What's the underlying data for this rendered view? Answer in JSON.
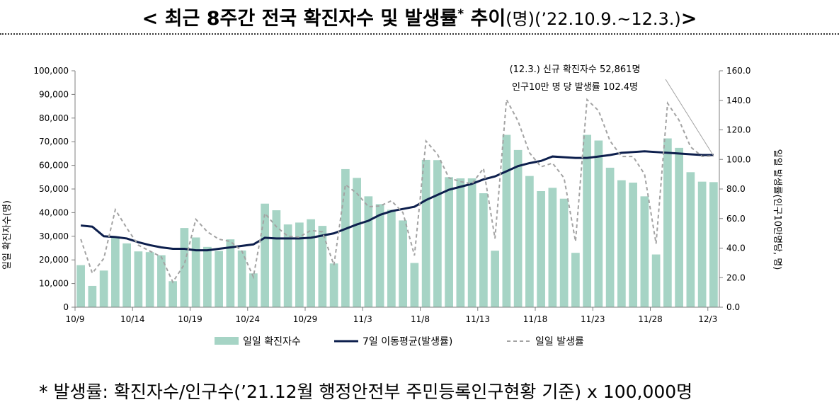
{
  "title": {
    "main": "< 최근 8주간 전국 확진자수 및 발생률",
    "star": "*",
    "tail": " 추이",
    "unit_period": "(명)(’22.10.9.~12.3.)",
    "close": ">"
  },
  "footnote": "* 발생률: 확진자수/인구수(’21.12월 행정안전부 주민등록인구현황 기준) x 100,000명",
  "colors": {
    "bar": "#a6d4c5",
    "avg_line": "#0d1f4d",
    "daily_rate_line": "#a3a3a3",
    "axis": "#7f7f7f"
  },
  "chart_data": {
    "type": "bar",
    "annotation": [
      "(12.3.) 신규 확진자수 52,861명",
      "인구10만 명 당 발생률 102.4명"
    ],
    "ylabel": "일일 확진자수(명)",
    "y2label": "일일 발생률(인구10만명당, 명)",
    "ylim": [
      0,
      100000
    ],
    "y2lim": [
      0,
      160
    ],
    "yticks": [
      "0",
      "10,000",
      "20,000",
      "30,000",
      "40,000",
      "50,000",
      "60,000",
      "70,000",
      "80,000",
      "90,000",
      "100,000"
    ],
    "y2ticks": [
      "0.0",
      "20.0",
      "40.0",
      "60.0",
      "80.0",
      "100.0",
      "120.0",
      "140.0",
      "160.0"
    ],
    "x_tick_labels": [
      {
        "index": 0,
        "label": "10/9"
      },
      {
        "index": 5,
        "label": "10/14"
      },
      {
        "index": 10,
        "label": "10/19"
      },
      {
        "index": 15,
        "label": "10/24"
      },
      {
        "index": 20,
        "label": "10/29"
      },
      {
        "index": 25,
        "label": "11/3"
      },
      {
        "index": 30,
        "label": "11/8"
      },
      {
        "index": 35,
        "label": "11/13"
      },
      {
        "index": 40,
        "label": "11/18"
      },
      {
        "index": 45,
        "label": "11/23"
      },
      {
        "index": 50,
        "label": "11/28"
      },
      {
        "index": 55,
        "label": "12/3"
      }
    ],
    "x": [
      "10/9",
      "10/10",
      "10/11",
      "10/12",
      "10/13",
      "10/14",
      "10/15",
      "10/16",
      "10/17",
      "10/18",
      "10/19",
      "10/20",
      "10/21",
      "10/22",
      "10/23",
      "10/24",
      "10/25",
      "10/26",
      "10/27",
      "10/28",
      "10/29",
      "10/30",
      "10/31",
      "11/1",
      "11/2",
      "11/3",
      "11/4",
      "11/5",
      "11/6",
      "11/7",
      "11/8",
      "11/9",
      "11/10",
      "11/11",
      "11/12",
      "11/13",
      "11/14",
      "11/15",
      "11/16",
      "11/17",
      "11/18",
      "11/19",
      "11/20",
      "11/21",
      "11/22",
      "11/23",
      "11/24",
      "11/25",
      "11/26",
      "11/27",
      "11/28",
      "11/29",
      "11/30",
      "12/1",
      "12/2",
      "12/3"
    ],
    "series": [
      {
        "name": "일일 확진자수",
        "type": "bar",
        "axis": "left",
        "values": [
          17800,
          9000,
          15500,
          30000,
          27000,
          23600,
          23300,
          22000,
          11000,
          33500,
          29500,
          25500,
          23800,
          28700,
          24000,
          14300,
          43800,
          41000,
          35000,
          35800,
          37200,
          34400,
          18500,
          58400,
          54700,
          46900,
          43600,
          41200,
          36700,
          18700,
          62300,
          62200,
          55000,
          54500,
          54500,
          48200,
          23900,
          72900,
          66500,
          55500,
          49100,
          50500,
          45900,
          23000,
          72900,
          70500,
          59000,
          53700,
          52700,
          46900,
          22300,
          71400,
          67400,
          57100,
          53100,
          52900
        ]
      },
      {
        "name": "7일 이동평균(발생률)",
        "type": "line",
        "axis": "right",
        "values": [
          55.3,
          54.5,
          48.0,
          47.5,
          46.5,
          44.0,
          42.0,
          40.5,
          39.5,
          39.5,
          38.5,
          38.5,
          39.5,
          40.5,
          41.5,
          42.5,
          47.0,
          46.5,
          46.5,
          46.5,
          47.0,
          48.5,
          50.0,
          53.0,
          56.0,
          58.5,
          62.5,
          65.0,
          66.5,
          68.0,
          72.5,
          76.0,
          79.5,
          81.5,
          83.5,
          86.5,
          88.5,
          92.0,
          95.5,
          97.5,
          99.0,
          102.0,
          101.5,
          101.0,
          101.0,
          102.0,
          103.0,
          104.5,
          105.0,
          105.5,
          105.0,
          104.5,
          104.0,
          103.5,
          103.0,
          103.0
        ]
      },
      {
        "name": "일일 발생률",
        "type": "line",
        "axis": "right",
        "values": [
          46.0,
          23.0,
          33.0,
          66.0,
          53.5,
          42.0,
          38.0,
          34.0,
          17.0,
          29.0,
          59.5,
          51.0,
          46.0,
          44.5,
          38.0,
          20.5,
          63.5,
          54.5,
          48.0,
          47.5,
          52.0,
          51.0,
          28.5,
          83.0,
          77.0,
          68.0,
          68.5,
          72.0,
          64.0,
          35.0,
          112.5,
          103.5,
          87.5,
          85.0,
          83.5,
          94.0,
          46.5,
          140.5,
          126.0,
          104.5,
          95.0,
          97.5,
          87.5,
          44.5,
          140.5,
          133.0,
          112.5,
          102.0,
          102.0,
          90.0,
          43.0,
          138.0,
          126.5,
          108.5,
          102.0,
          102.4
        ]
      }
    ],
    "legend_position": "bottom"
  }
}
